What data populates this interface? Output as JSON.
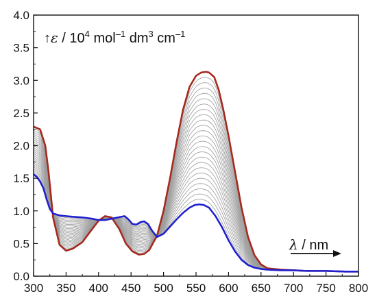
{
  "chart_data": {
    "type": "line",
    "xlabel": {
      "symbol": "λ",
      "text": " / nm"
    },
    "ylabel": {
      "symbol": "ε",
      "prefix": " / 10",
      "exp1": "4",
      "unit1": " mol",
      "exp2": "–1",
      "unit2": " dm",
      "exp3": "3",
      "unit3": " cm",
      "exp4": "–1"
    },
    "xlim": [
      300,
      800
    ],
    "ylim": [
      0.0,
      4.0
    ],
    "xticks": [
      300,
      350,
      400,
      450,
      500,
      550,
      600,
      650,
      700,
      750,
      800
    ],
    "yticks": [
      0.0,
      0.5,
      1.0,
      1.5,
      2.0,
      2.5,
      3.0,
      3.5,
      4.0
    ],
    "ytick_labels": [
      "0.0",
      "0.5",
      "1.0",
      "1.5",
      "2.0",
      "2.5",
      "3.0",
      "3.5",
      "4.0"
    ],
    "grid": false,
    "intermediate_spectra_count": 24,
    "series": [
      {
        "role": "initial",
        "color": "#a52a1e",
        "x": [
          300,
          310,
          318,
          323,
          330,
          340,
          350,
          360,
          375,
          390,
          400,
          410,
          420,
          432,
          442,
          452,
          462,
          470,
          478,
          490,
          500,
          510,
          520,
          530,
          540,
          550,
          558,
          565,
          570,
          578,
          585,
          592,
          600,
          610,
          620,
          630,
          640,
          650,
          660,
          680,
          700,
          720,
          750,
          780,
          800
        ],
        "y": [
          2.29,
          2.25,
          2.0,
          1.6,
          0.9,
          0.48,
          0.39,
          0.42,
          0.52,
          0.72,
          0.85,
          0.92,
          0.9,
          0.72,
          0.5,
          0.38,
          0.33,
          0.34,
          0.4,
          0.62,
          1.0,
          1.5,
          2.05,
          2.55,
          2.9,
          3.07,
          3.12,
          3.13,
          3.12,
          3.05,
          2.85,
          2.55,
          2.15,
          1.6,
          1.05,
          0.6,
          0.32,
          0.18,
          0.12,
          0.1,
          0.09,
          0.08,
          0.08,
          0.07,
          0.07
        ]
      },
      {
        "role": "final",
        "color": "#1f1fcf",
        "x": [
          300,
          305,
          310,
          315,
          320,
          325,
          330,
          340,
          350,
          360,
          375,
          390,
          400,
          410,
          420,
          430,
          440,
          446,
          452,
          458,
          465,
          470,
          476,
          482,
          490,
          500,
          510,
          520,
          530,
          540,
          548,
          555,
          562,
          570,
          580,
          590,
          600,
          610,
          620,
          630,
          640,
          650,
          660,
          680,
          700,
          720,
          750,
          780,
          800
        ],
        "y": [
          1.56,
          1.52,
          1.45,
          1.35,
          1.18,
          1.03,
          0.96,
          0.93,
          0.92,
          0.91,
          0.9,
          0.88,
          0.86,
          0.86,
          0.88,
          0.9,
          0.92,
          0.87,
          0.8,
          0.79,
          0.83,
          0.84,
          0.8,
          0.7,
          0.6,
          0.65,
          0.76,
          0.87,
          0.97,
          1.05,
          1.09,
          1.1,
          1.09,
          1.05,
          0.92,
          0.75,
          0.55,
          0.38,
          0.25,
          0.17,
          0.13,
          0.11,
          0.1,
          0.09,
          0.09,
          0.08,
          0.08,
          0.07,
          0.07
        ]
      }
    ]
  }
}
